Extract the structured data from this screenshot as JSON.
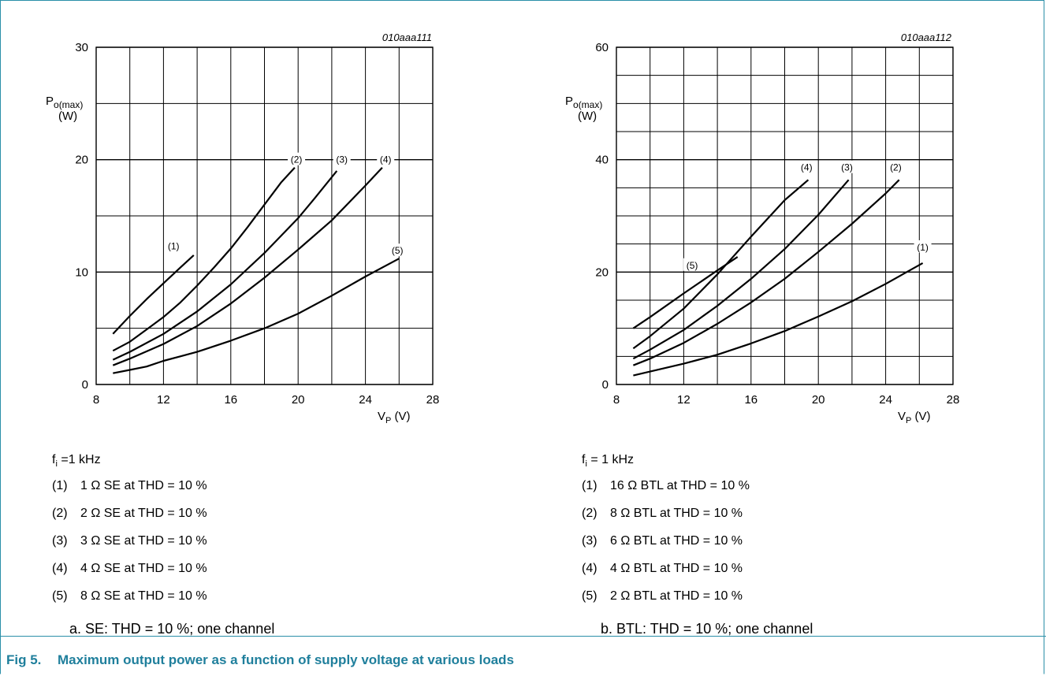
{
  "chart_data": [
    {
      "type": "line",
      "code": "010aaa111",
      "ylabel_main": "P",
      "ylabel_sub": "o(max)",
      "ylabel_unit": "(W)",
      "xlabel_main": "V",
      "xlabel_sub": "P",
      "xlabel_unit": " (V)",
      "xlim": [
        8,
        28
      ],
      "ylim": [
        0,
        30
      ],
      "x_ticks": [
        "8",
        "12",
        "16",
        "20",
        "24",
        "28"
      ],
      "y_ticks": [
        "0",
        "10",
        "20",
        "30"
      ],
      "series": [
        {
          "name": "(1)",
          "x": [
            9,
            10,
            11,
            12,
            13,
            13.8
          ],
          "y": [
            4.5,
            6.1,
            7.6,
            9.0,
            10.4,
            11.5
          ]
        },
        {
          "name": "(2)",
          "x": [
            9,
            10,
            11,
            12,
            13,
            14,
            15,
            16,
            17,
            18,
            19,
            19.8
          ],
          "y": [
            3.0,
            3.8,
            4.9,
            6.0,
            7.3,
            8.8,
            10.4,
            12.1,
            14.0,
            16.0,
            18.0,
            19.3
          ]
        },
        {
          "name": "(3)",
          "x": [
            9,
            10,
            12,
            14,
            16,
            18,
            20,
            21,
            22.3
          ],
          "y": [
            2.2,
            2.9,
            4.5,
            6.5,
            8.9,
            11.7,
            14.8,
            16.6,
            19.0
          ]
        },
        {
          "name": "(4)",
          "x": [
            9,
            10,
            12,
            14,
            16,
            18,
            20,
            22,
            24,
            25
          ],
          "y": [
            1.7,
            2.3,
            3.6,
            5.2,
            7.2,
            9.5,
            12.0,
            14.6,
            17.7,
            19.3
          ]
        },
        {
          "name": "(5)",
          "x": [
            9,
            10,
            11,
            12,
            13,
            14,
            16,
            18,
            20,
            22,
            24,
            26
          ],
          "y": [
            1.0,
            1.3,
            1.6,
            2.1,
            2.5,
            2.9,
            3.9,
            5.0,
            6.3,
            7.9,
            9.6,
            11.2
          ]
        }
      ],
      "label_points": [
        {
          "text": "(1)",
          "x": 12.6,
          "y": 12.3
        },
        {
          "text": "(2)",
          "x": 19.9,
          "y": 20.0
        },
        {
          "text": "(3)",
          "x": 22.6,
          "y": 20.0
        },
        {
          "text": "(4)",
          "x": 25.2,
          "y": 20.0
        },
        {
          "text": "(5)",
          "x": 25.9,
          "y": 11.9
        }
      ]
    },
    {
      "type": "line",
      "code": "010aaa112",
      "ylabel_main": "P",
      "ylabel_sub": "o(max)",
      "ylabel_unit": "(W)",
      "xlabel_main": "V",
      "xlabel_sub": "P",
      "xlabel_unit": " (V)",
      "xlim": [
        8,
        28
      ],
      "ylim": [
        0,
        60
      ],
      "x_ticks": [
        "8",
        "12",
        "16",
        "20",
        "24",
        "28"
      ],
      "y_ticks": [
        "0",
        "20",
        "40",
        "60"
      ],
      "series": [
        {
          "name": "(1)",
          "x": [
            9,
            10,
            12,
            14,
            16,
            18,
            20,
            22,
            24,
            26.2
          ],
          "y": [
            1.6,
            2.3,
            3.7,
            5.3,
            7.3,
            9.5,
            12.1,
            14.8,
            17.9,
            21.6
          ]
        },
        {
          "name": "(2)",
          "x": [
            9,
            10,
            12,
            14,
            16,
            18,
            20,
            22,
            24,
            24.8
          ],
          "y": [
            3.4,
            4.6,
            7.4,
            10.8,
            14.6,
            18.8,
            23.6,
            28.6,
            34.0,
            36.4
          ]
        },
        {
          "name": "(3)",
          "x": [
            9,
            10,
            12,
            14,
            16,
            18,
            20,
            21.8
          ],
          "y": [
            4.6,
            6.2,
            9.7,
            14.0,
            18.8,
            24.1,
            30.2,
            36.4
          ]
        },
        {
          "name": "(4)",
          "x": [
            9,
            10,
            12,
            14,
            16,
            18,
            19.4
          ],
          "y": [
            6.4,
            8.6,
            13.5,
            19.6,
            26.3,
            32.8,
            36.4
          ]
        },
        {
          "name": "(5)",
          "x": [
            9,
            10,
            12,
            14,
            15.2
          ],
          "y": [
            10.0,
            12.0,
            16.2,
            20.3,
            22.7
          ]
        }
      ],
      "label_points": [
        {
          "text": "(1)",
          "x": 26.2,
          "y": 24.4
        },
        {
          "text": "(2)",
          "x": 24.6,
          "y": 38.6
        },
        {
          "text": "(3)",
          "x": 21.7,
          "y": 38.6
        },
        {
          "text": "(4)",
          "x": 19.3,
          "y": 38.6
        },
        {
          "text": "(5)",
          "x": 12.5,
          "y": 21.2
        }
      ]
    }
  ],
  "left": {
    "fi": "f",
    "fi_sub": "i",
    "fi_rest": " =1 kHz",
    "items": [
      {
        "num": "(1)",
        "text": "1 Ω SE at THD = 10 %"
      },
      {
        "num": "(2)",
        "text": "2 Ω SE at THD = 10 %"
      },
      {
        "num": "(3)",
        "text": "3 Ω SE at THD = 10 %"
      },
      {
        "num": "(4)",
        "text": "4 Ω SE at THD = 10 %"
      },
      {
        "num": "(5)",
        "text": "8 Ω SE at THD = 10 %"
      }
    ],
    "subcaption": "a.   SE: THD = 10 %; one channel"
  },
  "right": {
    "fi": "f",
    "fi_sub": "i",
    "fi_rest": " = 1 kHz",
    "items": [
      {
        "num": "(1)",
        "text": "16 Ω BTL at THD = 10 %"
      },
      {
        "num": "(2)",
        "text": "8 Ω BTL at THD = 10 %"
      },
      {
        "num": "(3)",
        "text": "6 Ω BTL at THD = 10 %"
      },
      {
        "num": "(4)",
        "text": "4 Ω BTL at THD = 10 %"
      },
      {
        "num": "(5)",
        "text": "2 Ω BTL at THD = 10 %"
      }
    ],
    "subcaption": "b.   BTL: THD = 10 %; one channel"
  },
  "caption": {
    "fig": "Fig 5.",
    "text": "Maximum output power as a function of supply voltage at various loads"
  },
  "colors": {
    "accent": "#1f7f9c",
    "frame": "#2a8fa8",
    "line": "#000000"
  }
}
